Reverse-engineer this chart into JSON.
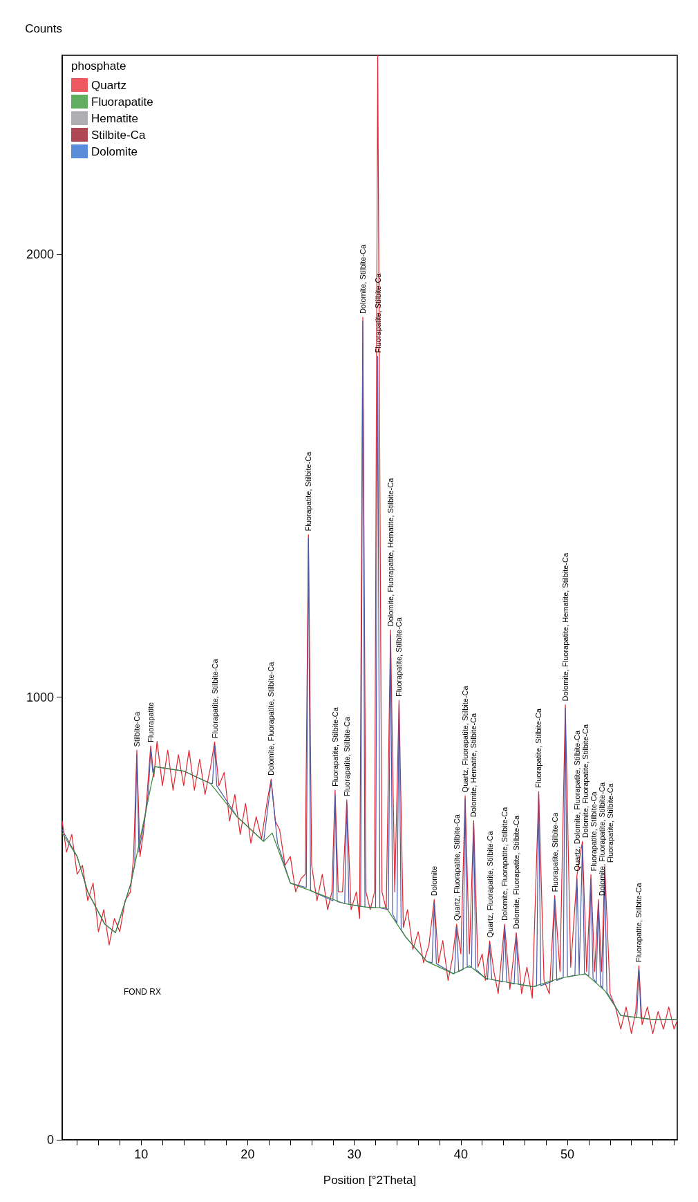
{
  "chart_data": {
    "type": "line",
    "xlabel": "Position [°2Theta]",
    "ylabel": "Counts",
    "legend_title": "phosphate",
    "xlim": [
      2.6,
      60.3
    ],
    "ylim": [
      0,
      2450
    ],
    "xticks": [
      {
        "value": 4,
        "label": null
      },
      {
        "value": 6,
        "label": null
      },
      {
        "value": 8,
        "label": null
      },
      10,
      {
        "value": 12,
        "label": null
      },
      {
        "value": 14,
        "label": null
      },
      {
        "value": 16,
        "label": null
      },
      {
        "value": 18,
        "label": null
      },
      20,
      {
        "value": 22,
        "label": null
      },
      {
        "value": 24,
        "label": null
      },
      {
        "value": 26,
        "label": null
      },
      {
        "value": 28,
        "label": null
      },
      30,
      {
        "value": 32,
        "label": null
      },
      {
        "value": 34,
        "label": null
      },
      {
        "value": 36,
        "label": null
      },
      {
        "value": 38,
        "label": null
      },
      40,
      {
        "value": 42,
        "label": null
      },
      {
        "value": 44,
        "label": null
      },
      {
        "value": 46,
        "label": null
      },
      {
        "value": 48,
        "label": null
      },
      50,
      {
        "value": 52,
        "label": null
      },
      {
        "value": 54,
        "label": null
      },
      {
        "value": 56,
        "label": null
      },
      {
        "value": 58,
        "label": null
      },
      {
        "value": 60,
        "label": null
      }
    ],
    "yticks": [
      0,
      1000,
      2000
    ],
    "grid": false,
    "legend": "top left",
    "series": [
      {
        "color": "#e0252e",
        "x": [
          2.6,
          3.0,
          3.5,
          4.0,
          4.5,
          5.0,
          5.5,
          6.0,
          6.5,
          7.0,
          7.5,
          8.0,
          8.5,
          9.0,
          9.3,
          9.6,
          9.9,
          10.2,
          10.5,
          10.9,
          11.2,
          11.5,
          12.0,
          12.5,
          13.0,
          13.5,
          14.0,
          14.5,
          15.0,
          15.5,
          16.0,
          16.5,
          16.9,
          17.3,
          17.8,
          18.3,
          18.8,
          19.3,
          19.8,
          20.3,
          20.8,
          21.3,
          21.8,
          22.2,
          22.6,
          23.0,
          23.5,
          24.0,
          24.5,
          25.0,
          25.4,
          25.7,
          26.0,
          26.5,
          27.0,
          27.5,
          27.9,
          28.2,
          28.5,
          28.9,
          29.3,
          29.7,
          30.2,
          30.5,
          30.8,
          31.1,
          31.5,
          31.9,
          32.2,
          32.6,
          33.0,
          33.4,
          33.8,
          34.2,
          34.6,
          35.0,
          35.5,
          36.0,
          36.5,
          37.0,
          37.5,
          37.9,
          38.3,
          38.8,
          39.2,
          39.6,
          40.0,
          40.4,
          40.8,
          41.2,
          41.6,
          42.0,
          42.3,
          42.7,
          43.1,
          43.5,
          44.1,
          44.6,
          45.2,
          45.7,
          46.2,
          46.7,
          47.3,
          47.8,
          48.3,
          48.8,
          49.3,
          49.8,
          50.3,
          50.9,
          51.4,
          51.8,
          52.2,
          52.55,
          52.9,
          53.2,
          53.5,
          54.0,
          54.5,
          55.0,
          55.5,
          56.0,
          56.4,
          56.7,
          57.0,
          57.5,
          58.0,
          58.5,
          59.0,
          59.5,
          60.0,
          60.3
        ],
        "values": [
          720,
          650,
          690,
          600,
          620,
          540,
          580,
          470,
          520,
          440,
          500,
          470,
          540,
          560,
          640,
          880,
          640,
          690,
          760,
          890,
          820,
          900,
          800,
          880,
          790,
          870,
          800,
          880,
          790,
          860,
          780,
          840,
          899,
          800,
          830,
          720,
          780,
          690,
          760,
          670,
          730,
          680,
          760,
          815,
          720,
          700,
          620,
          640,
          560,
          590,
          600,
          1367,
          620,
          540,
          600,
          520,
          560,
          790,
          560,
          560,
          768,
          520,
          560,
          500,
          1858,
          560,
          520,
          560,
          2450,
          560,
          520,
          1152,
          560,
          993,
          480,
          520,
          430,
          470,
          400,
          440,
          543,
          400,
          450,
          360,
          410,
          487,
          420,
          777,
          420,
          721,
          390,
          420,
          360,
          449,
          380,
          330,
          487,
          340,
          468,
          330,
          390,
          320,
          787,
          360,
          330,
          552,
          380,
          983,
          390,
          599,
          674,
          380,
          599,
          380,
          543,
          380,
          618,
          330,
          300,
          250,
          300,
          240,
          290,
          393,
          260,
          300,
          240,
          290,
          250,
          300,
          250,
          270
        ]
      },
      {
        "color": "#4a5aa8",
        "x": [
          2.6,
          4,
          5,
          6.6,
          7.6,
          9.05,
          9.4,
          9.6,
          9.8,
          10.5,
          10.7,
          10.9,
          11.1,
          11.3,
          14,
          16.5,
          16.7,
          16.9,
          17.1,
          19,
          21.5,
          22.2,
          22.8,
          24,
          25.5,
          25.7,
          25.9,
          26,
          28.0,
          28.2,
          28.4,
          29.1,
          29.3,
          29.5,
          30.6,
          30.8,
          31.0,
          32.0,
          32.2,
          32.4,
          33.2,
          33.4,
          33.6,
          34.0,
          34.2,
          34.4,
          34.8,
          36.8,
          37.3,
          37.5,
          37.7,
          39.3,
          39.4,
          39.6,
          39.8,
          40.2,
          40.4,
          40.6,
          41.0,
          41.2,
          41.4,
          42.3,
          42.5,
          42.7,
          42.9,
          43.9,
          44.1,
          44.3,
          45.0,
          45.2,
          45.4,
          46.8,
          47.1,
          47.3,
          47.5,
          48.6,
          48.8,
          49.0,
          49.6,
          49.8,
          50.0,
          50.7,
          50.9,
          51.1,
          51.4,
          51.6,
          52.0,
          52.2,
          52.4,
          52.7,
          52.9,
          53.1,
          53.3,
          53.5,
          53.7,
          55,
          56.5,
          56.7,
          56.9,
          58,
          60.3
        ],
        "values": [
          700,
          640,
          560,
          487,
          468,
          580,
          620,
          870,
          650,
          749,
          790,
          880,
          830,
          843,
          833,
          805,
          805,
          890,
          800,
          730,
          674,
          810,
          670,
          580,
          570,
          1360,
          565,
          562,
          540,
          780,
          538,
          534,
          760,
          532,
          527,
          1850,
          526,
          524,
          1770,
          524,
          520,
          1140,
          510,
          490,
          985,
          475,
          459,
          403,
          400,
          535,
          398,
          375,
          377,
          480,
          380,
          385,
          770,
          390,
          390,
          715,
          385,
          365,
          362,
          440,
          362,
          357,
          480,
          356,
          352,
          460,
          351,
          346,
          347,
          780,
          348,
          358,
          545,
          360,
          366,
          975,
          368,
          372,
          590,
          374,
          665,
          375,
          370,
          590,
          365,
          355,
          535,
          350,
          342,
          610,
          333,
          281,
          276,
          385,
          275,
          272,
          272
        ]
      },
      {
        "color": "#3c8a3c",
        "x": [
          2.6,
          4,
          5,
          6.6,
          7.6,
          9.05,
          10.5,
          11.3,
          14,
          16.5,
          19,
          21.5,
          22.3,
          24,
          26,
          29,
          31.5,
          33,
          34.8,
          36.8,
          39.3,
          40.8,
          42.3,
          44.3,
          46.8,
          49.3,
          51.7,
          53.5,
          55,
          58,
          60.3
        ],
        "values": [
          693,
          640,
          560,
          487,
          468,
          580,
          749,
          843,
          833,
          805,
          730,
          674,
          693,
          580,
          562,
          534,
          524,
          524,
          459,
          403,
          375,
          393,
          365,
          356,
          346,
          365,
          375,
          337,
          281,
          272,
          272
        ]
      },
      {
        "name": "Quartz",
        "type": "scatter",
        "color": "#e8303a"
      },
      {
        "name": "Fluorapatite",
        "type": "scatter",
        "color": "#3a9a3a"
      },
      {
        "name": "Hematite",
        "type": "scatter",
        "color": "#9a9aa0"
      },
      {
        "name": "Stilbite-Ca",
        "type": "scatter",
        "color": "#9a1a2a"
      },
      {
        "name": "Dolomite",
        "type": "scatter",
        "color": "#2f6fd0"
      }
    ],
    "annotations": [
      {
        "text": "Stilbite-Ca",
        "x": 9.6,
        "y": 880
      },
      {
        "text": "Fluorapatite",
        "x": 10.9,
        "y": 890
      },
      {
        "text": "Fluorapatite, Stilbite-Ca",
        "x": 16.9,
        "y": 899
      },
      {
        "text": "Dolomite, Fluorapatite, Stilbite-Ca",
        "x": 22.2,
        "y": 815
      },
      {
        "text": "Fluorapatite, Stilbite-Ca",
        "x": 25.7,
        "y": 1367
      },
      {
        "text": "Fluorapatite, Stilbite-Ca",
        "x": 28.2,
        "y": 790
      },
      {
        "text": "Fluorapatite, Stilbite-Ca",
        "x": 29.3,
        "y": 768
      },
      {
        "text": "Dolomite, Stilbite-Ca",
        "x": 30.8,
        "y": 1858
      },
      {
        "text": "Fluorapatite, Stilbite-Ca",
        "x": 32.2,
        "y": 1770
      },
      {
        "text": "Dolomite, Fluorapatite, Hematite, Stilbite-Ca",
        "x": 33.4,
        "y": 1152
      },
      {
        "text": "Fluorapatite, Stilbite-Ca",
        "x": 34.2,
        "y": 993
      },
      {
        "text": "Dolomite",
        "x": 37.5,
        "y": 543
      },
      {
        "text": "Quartz, Fluorapatite, Stilbite-Ca",
        "x": 39.6,
        "y": 487
      },
      {
        "text": "Quartz, Fluorapatite, Stilbite-Ca",
        "x": 40.4,
        "y": 777
      },
      {
        "text": "Dolomite, Hematite, Stilbite-Ca",
        "x": 41.2,
        "y": 721
      },
      {
        "text": "Quartz, Fluorapatite, Stilbite-Ca",
        "x": 42.7,
        "y": 449
      },
      {
        "text": "Dolomite, Fluorapatite, Stilbite-Ca",
        "x": 44.1,
        "y": 487
      },
      {
        "text": "Dolomite, Fluorapatite, Stilbite-Ca",
        "x": 45.2,
        "y": 468
      },
      {
        "text": "Fluorapatite, Stilbite-Ca",
        "x": 47.3,
        "y": 787
      },
      {
        "text": "Fluorapatite, Stilbite-Ca",
        "x": 48.8,
        "y": 552
      },
      {
        "text": "Dolomite, Fluorapatite, Hematite, Stilbite-Ca",
        "x": 49.8,
        "y": 983
      },
      {
        "text": "Quartz, Dolomite, Fluorapatite, Stilbite-Ca",
        "x": 50.9,
        "y": 599
      },
      {
        "text": "Dolomite, Fluorapatite, Stilbite-Ca",
        "x": 51.4,
        "y": 674
      },
      {
        "text": "Fluorapatite, Stilbite-Ca",
        "x": 52.2,
        "y": 599
      },
      {
        "text": "Dolomite, Fluorapatite, Stilbite-Ca",
        "x": 52.9,
        "y": 543
      },
      {
        "text": "Fluorapatite, Stilbite-Ca",
        "x": 53.5,
        "y": 618
      },
      {
        "text": "Fluorapatite, Stilbite-Ca",
        "x": 56.7,
        "y": 393
      },
      "FOND RX"
    ]
  }
}
